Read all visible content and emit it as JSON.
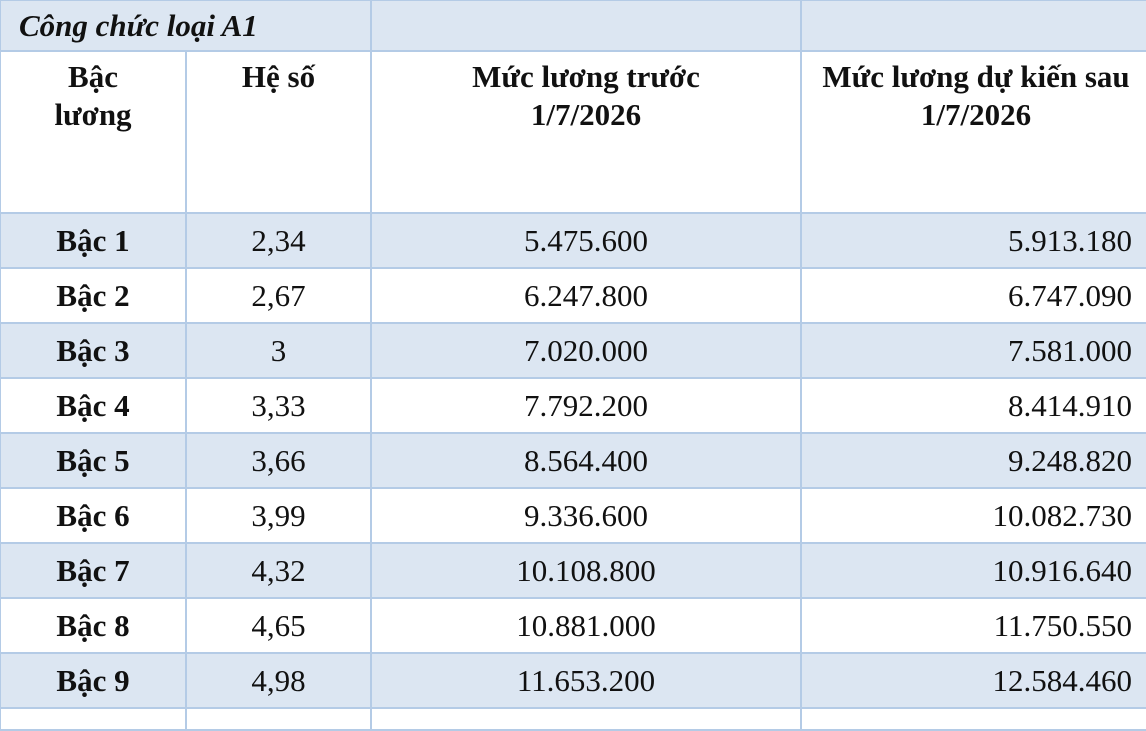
{
  "table": {
    "title": "Công chức loại A1",
    "header": [
      "Bậc lương",
      "Hệ số",
      "Mức lương trước 1/7/2026",
      "Mức lương dự kiến sau 1/7/2026"
    ],
    "rows": [
      [
        "Bậc 1",
        "2,34",
        "5.475.600",
        "5.913.180"
      ],
      [
        "Bậc 2",
        "2,67",
        "6.247.800",
        "6.747.090"
      ],
      [
        "Bậc 3",
        "3",
        "7.020.000",
        "7.581.000"
      ],
      [
        "Bậc 4",
        "3,33",
        "7.792.200",
        "8.414.910"
      ],
      [
        "Bậc 5",
        "3,66",
        "8.564.400",
        "9.248.820"
      ],
      [
        "Bậc 6",
        "3,99",
        "9.336.600",
        "10.082.730"
      ],
      [
        "Bậc 7",
        "4,32",
        "10.108.800",
        "10.916.640"
      ],
      [
        "Bậc 8",
        "4,65",
        "10.881.000",
        "11.750.550"
      ],
      [
        "Bậc 9",
        "4,98",
        "11.653.200",
        "12.584.460"
      ]
    ]
  }
}
